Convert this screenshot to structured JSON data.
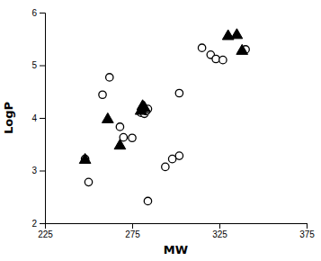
{
  "chart_data": {
    "type": "scatter",
    "xlabel": "MW",
    "ylabel": "LogP",
    "xlim": [
      225,
      375
    ],
    "ylim": [
      2,
      6
    ],
    "xticks": [
      225,
      275,
      325,
      375
    ],
    "yticks": [
      2,
      3,
      4,
      5,
      6
    ],
    "grid": false,
    "series": [
      {
        "marker": "circle-open",
        "color": "black",
        "x": [
          248,
          250,
          258,
          262,
          268,
          270,
          275,
          280,
          281,
          282,
          283,
          284,
          284,
          294,
          298,
          302,
          302,
          315,
          320,
          323,
          327,
          340
        ],
        "values": [
          3.22,
          2.78,
          4.44,
          4.77,
          3.83,
          3.63,
          3.62,
          4.1,
          4.15,
          4.08,
          4.13,
          4.17,
          2.42,
          3.07,
          3.22,
          3.28,
          4.47,
          5.33,
          5.2,
          5.12,
          5.1,
          5.3
        ]
      },
      {
        "marker": "triangle",
        "color": "black",
        "x": [
          248,
          261,
          268,
          280,
          281,
          282,
          330,
          335,
          338
        ],
        "values": [
          3.2,
          3.97,
          3.47,
          4.13,
          4.22,
          4.19,
          5.55,
          5.57,
          5.27
        ]
      }
    ]
  }
}
